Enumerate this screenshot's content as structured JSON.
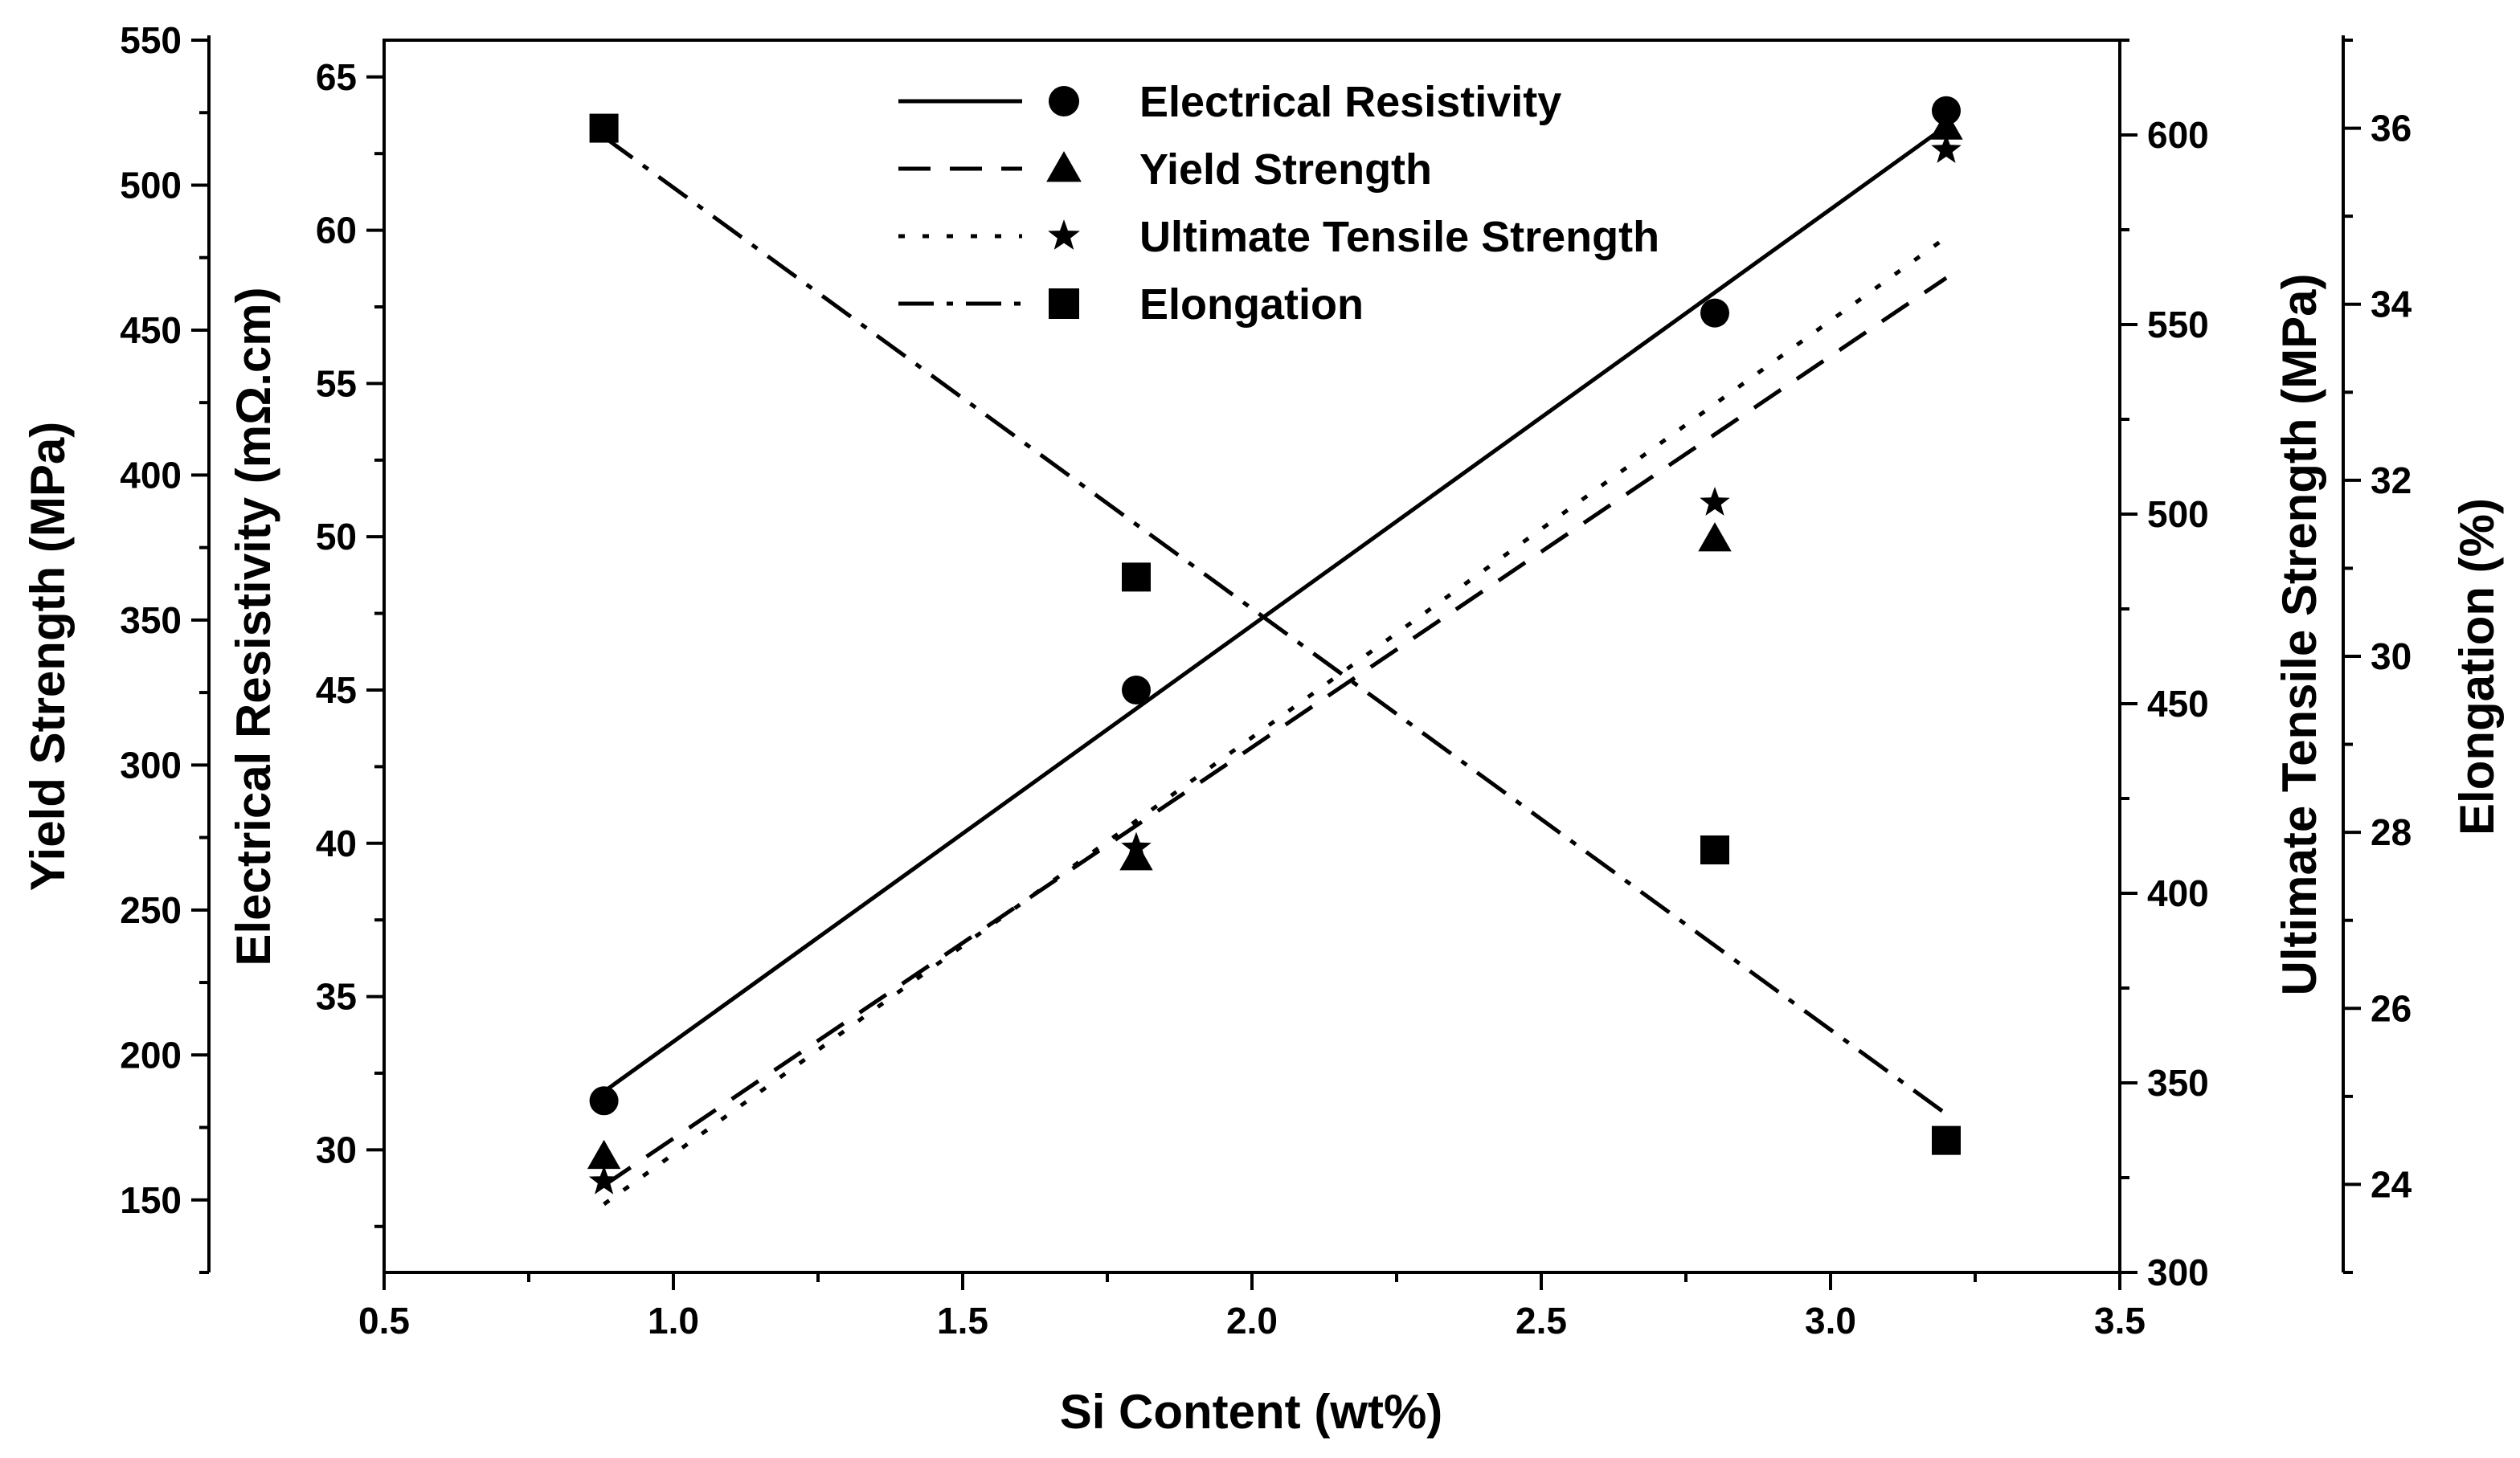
{
  "chart_data": {
    "type": "scatter",
    "title": "",
    "xlabel": "Si Content (wt%)",
    "xlim": [
      0.5,
      3.5
    ],
    "xticks": [
      "0.5",
      "1.0",
      "1.5",
      "2.0",
      "2.5",
      "3.0",
      "3.5"
    ],
    "grid": false,
    "legend_position": "top-center",
    "axes": {
      "resistivity": {
        "label": "Electrical Resistivity (mΩ.cm)",
        "range": [
          26,
          66.2
        ],
        "ticks": [
          "30",
          "35",
          "40",
          "45",
          "50",
          "55",
          "60",
          "65"
        ]
      },
      "yield": {
        "label": "Yield Strength (MPa)",
        "range": [
          125,
          550
        ],
        "ticks": [
          "150",
          "200",
          "250",
          "300",
          "350",
          "400",
          "450",
          "500",
          "550"
        ]
      },
      "uts": {
        "label": "Ultimate Tensile Strength (MPa)",
        "range": [
          300,
          625
        ],
        "ticks": [
          "300",
          "350",
          "400",
          "450",
          "500",
          "550",
          "600"
        ]
      },
      "elongation": {
        "label": "Elongation (%)",
        "range": [
          23,
          37
        ],
        "ticks": [
          "24",
          "26",
          "28",
          "30",
          "32",
          "34",
          "36"
        ]
      }
    },
    "series": [
      {
        "name": "Electrical Resistivity",
        "axis": "resistivity",
        "marker": "circle",
        "line": "solid",
        "x": [
          0.88,
          1.8,
          2.8,
          3.2
        ],
        "values": [
          31.6,
          45.0,
          57.3,
          63.9
        ],
        "fit": [
          31.9,
          63.4
        ]
      },
      {
        "name": "Yield Strength",
        "axis": "yield",
        "marker": "triangle",
        "line": "dashed",
        "x": [
          0.88,
          1.8,
          2.8,
          3.2
        ],
        "values": [
          165,
          268,
          378,
          520
        ],
        "fit": [
          155,
          468
        ]
      },
      {
        "name": "Ultimate Tensile Strength",
        "axis": "uts",
        "marker": "star",
        "line": "dotted",
        "x": [
          0.88,
          1.8,
          2.8,
          3.2
        ],
        "values": [
          324,
          412,
          503,
          596
        ],
        "fit": [
          318,
          573
        ]
      },
      {
        "name": "Elongation",
        "axis": "elongation",
        "marker": "square",
        "line": "dashdot",
        "x": [
          0.88,
          1.8,
          2.8,
          3.2
        ],
        "values": [
          36.0,
          30.9,
          27.8,
          24.5
        ],
        "fit": [
          35.9,
          24.8
        ]
      }
    ]
  }
}
